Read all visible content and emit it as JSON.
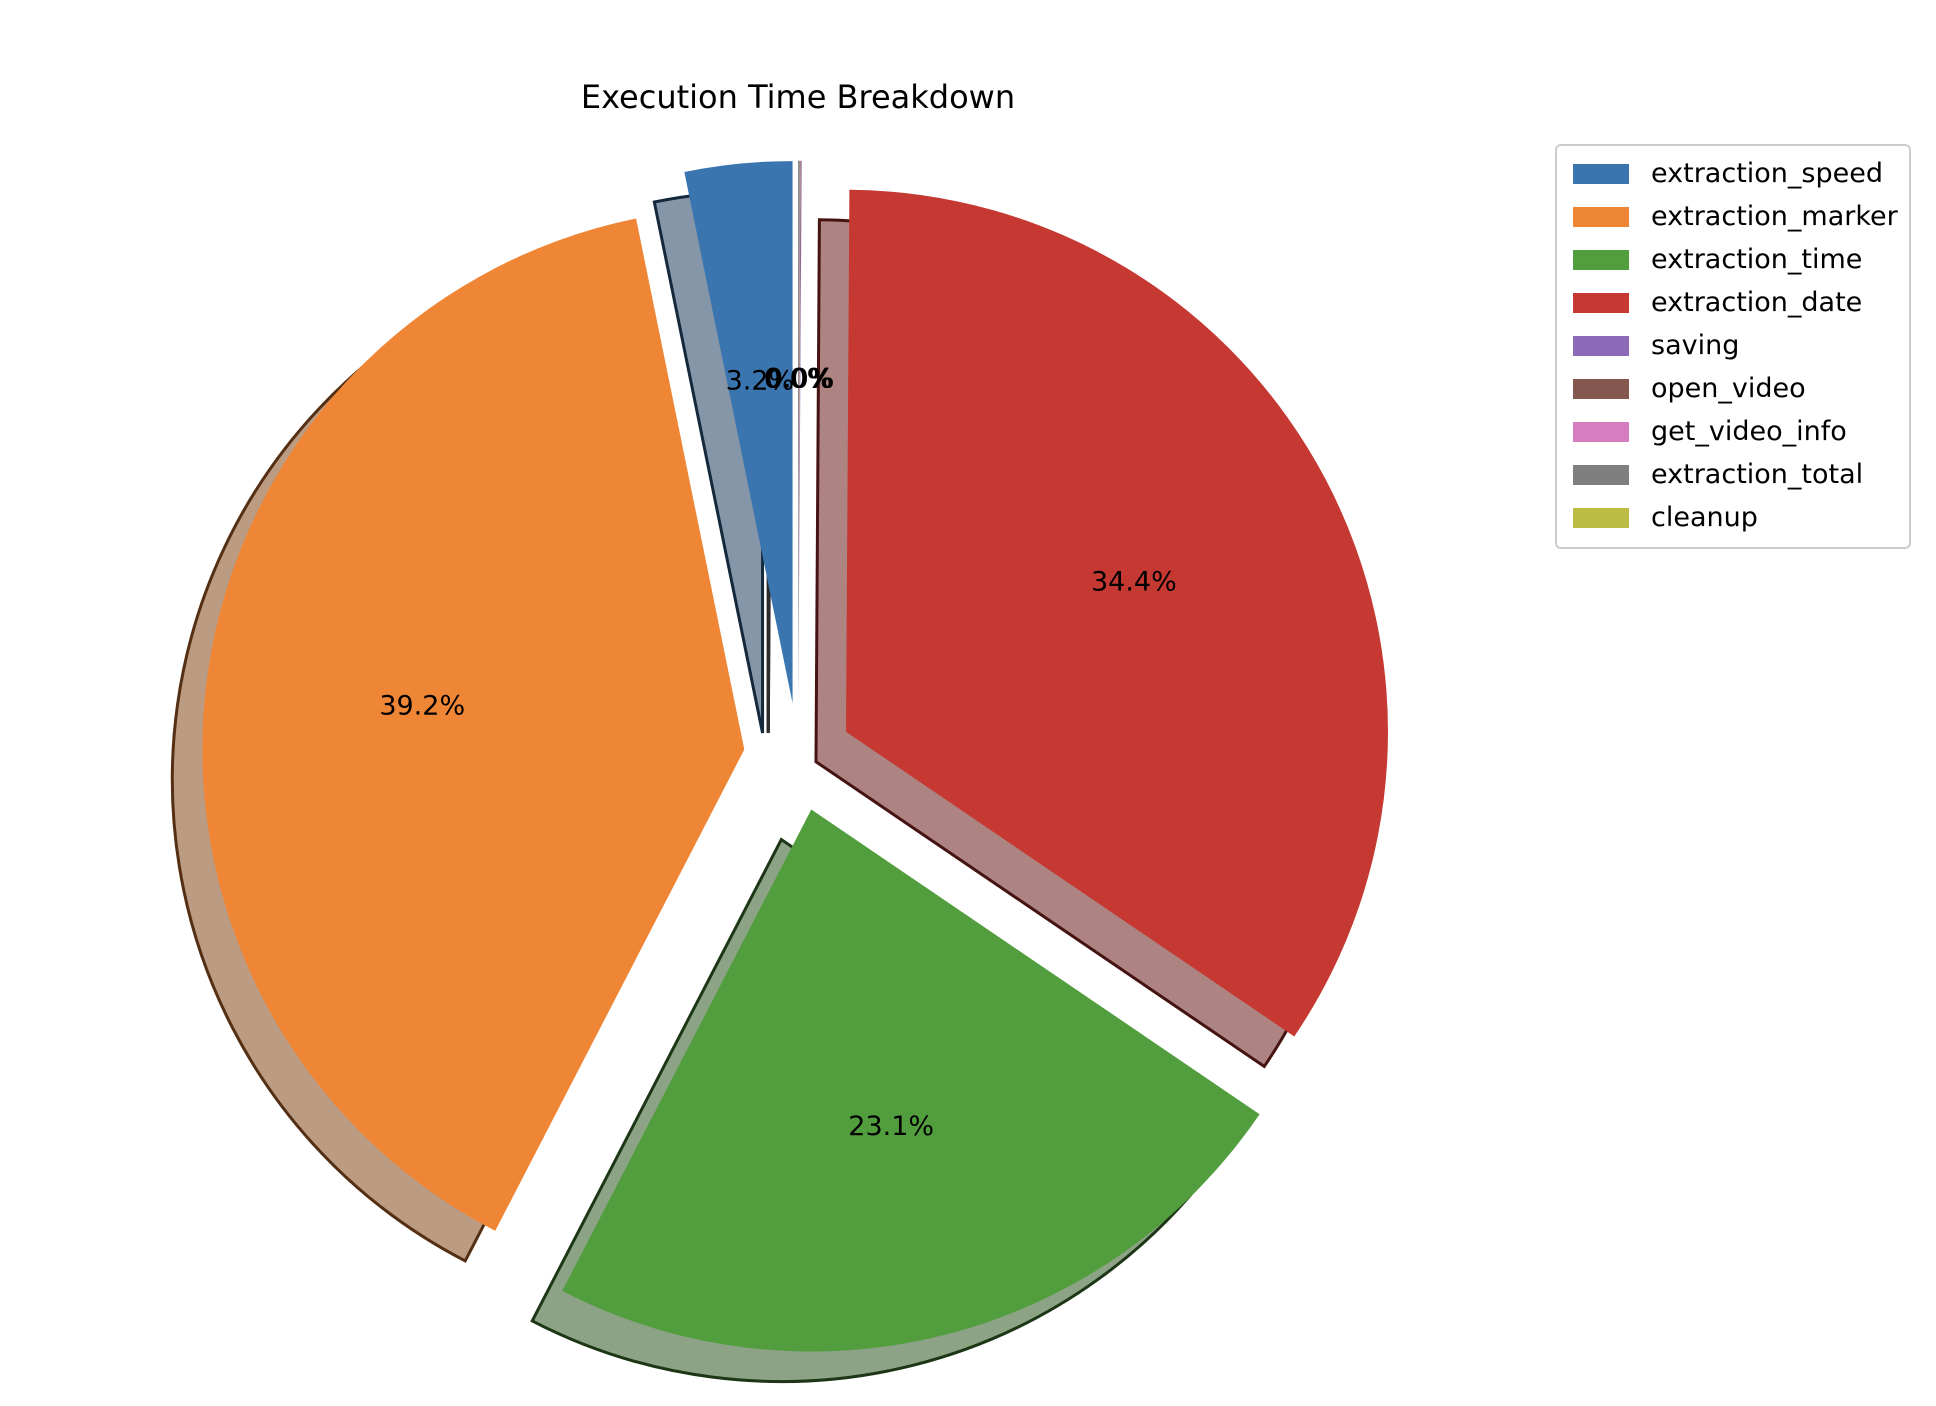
{
  "chart_data": {
    "type": "pie",
    "title": "Execution Time Breakdown",
    "labels": [
      "extraction_speed",
      "extraction_marker",
      "extraction_time",
      "extraction_date",
      "saving",
      "open_video",
      "get_video_info",
      "extraction_total",
      "cleanup"
    ],
    "values": [
      3.2,
      39.2,
      23.1,
      34.4,
      0.02,
      0.02,
      0.01,
      0.05,
      0.0
    ],
    "value_labels": [
      "3.2%",
      "39.2%",
      "23.1%",
      "34.4%",
      "0.0%",
      "0.0%",
      "0.0%",
      "0.0%",
      "0.0%"
    ],
    "colors": [
      "#3b75af",
      "#ef8636",
      "#529e3e",
      "#c53932",
      "#8d6ab8",
      "#84584e",
      "#d57dbe",
      "#7f7f7f",
      "#bcbc45"
    ],
    "explode": [
      0.1,
      0.1,
      0.1,
      0.1,
      0.1,
      0.1,
      0.1,
      0.1,
      0.1
    ],
    "start_angle_deg": 90,
    "shadow": true,
    "legend_position": "upper right, outside"
  }
}
